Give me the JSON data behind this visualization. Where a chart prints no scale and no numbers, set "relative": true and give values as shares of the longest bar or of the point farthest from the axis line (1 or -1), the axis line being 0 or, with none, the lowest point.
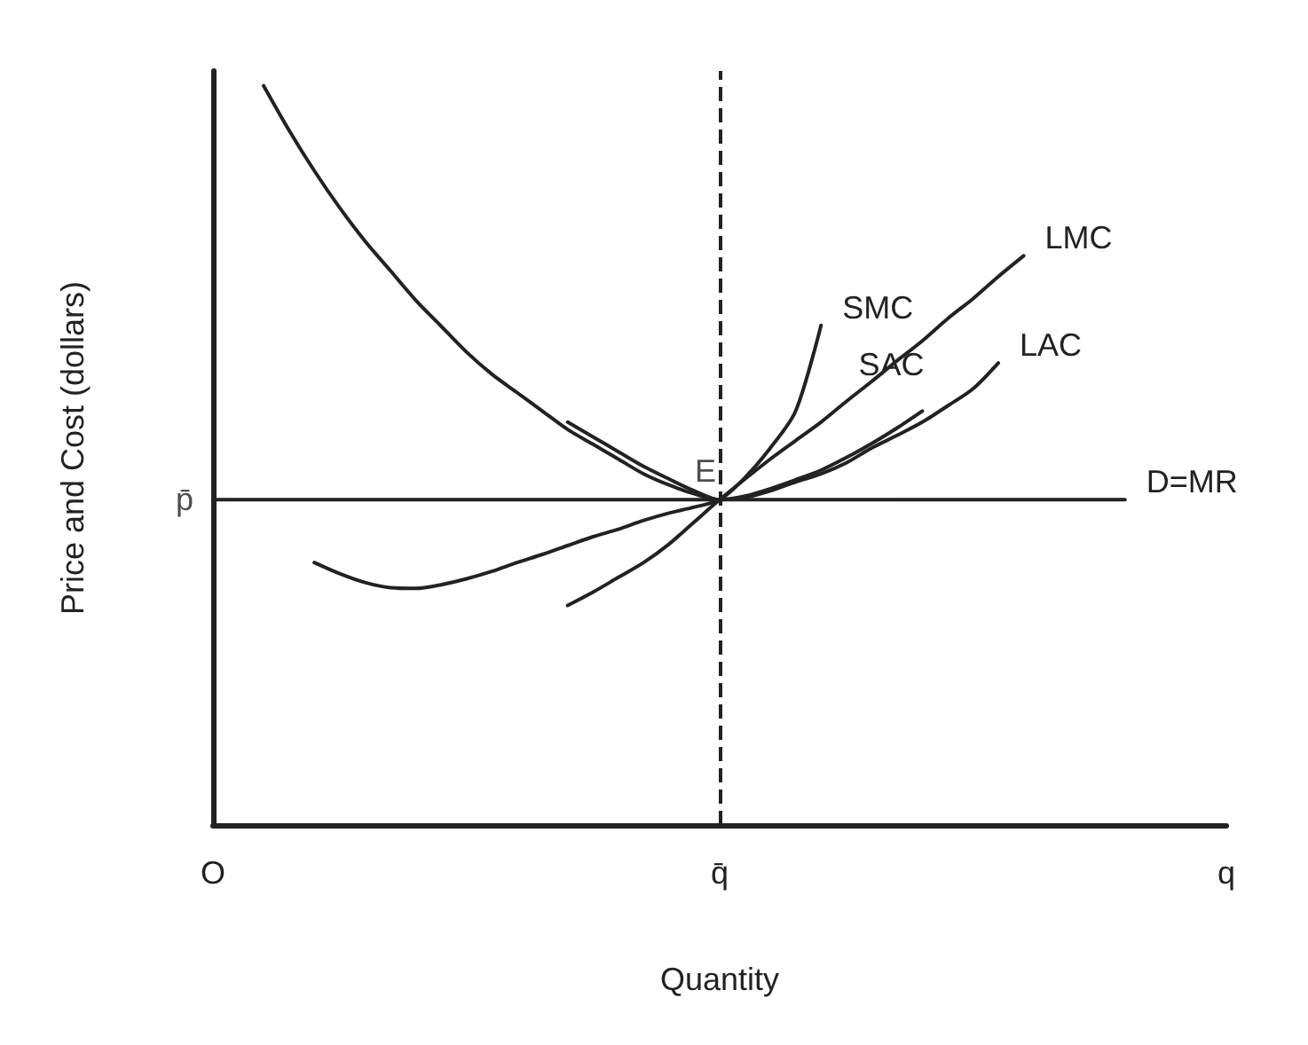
{
  "chart_data": {
    "type": "line",
    "relative": true,
    "xlabel": "Quantity",
    "ylabel": "Price and Cost (dollars)",
    "grid": false,
    "legend": false,
    "marker": "none",
    "line_style": "solid",
    "categories": [
      "O",
      null,
      null,
      null,
      null,
      null,
      null,
      null,
      null,
      null,
      null,
      null,
      null,
      null,
      null,
      null,
      null,
      null,
      null,
      null,
      "q̄",
      null,
      null,
      null,
      null,
      null,
      null,
      null,
      null,
      null,
      null,
      null,
      null,
      null,
      null,
      null,
      null,
      null,
      null,
      null,
      "q"
    ],
    "series": [
      {
        "name": "LAC",
        "color": "#222222",
        "values": [
          null,
          null,
          1.0,
          0.94,
          0.885,
          0.835,
          0.79,
          0.75,
          0.71,
          0.675,
          0.64,
          0.61,
          0.585,
          0.56,
          0.535,
          0.515,
          0.495,
          0.475,
          0.46,
          0.448,
          0.44,
          0.443,
          0.452,
          0.464,
          0.475,
          0.49,
          0.51,
          0.527,
          0.545,
          0.567,
          0.59,
          0.625,
          null,
          null,
          null,
          null,
          null,
          null,
          null,
          null,
          null
        ]
      },
      {
        "name": "SAC",
        "color": "#222222",
        "values": [
          null,
          null,
          null,
          null,
          null,
          null,
          null,
          null,
          null,
          null,
          null,
          null,
          null,
          null,
          0.545,
          0.525,
          0.505,
          0.485,
          0.468,
          0.452,
          0.44,
          0.445,
          0.455,
          0.467,
          0.48,
          0.497,
          0.516,
          0.537,
          0.56,
          null,
          null,
          null,
          null,
          null,
          null,
          null,
          null,
          null,
          null,
          null,
          null
        ]
      },
      {
        "name": "LMC",
        "color": "#222222",
        "values": [
          null,
          null,
          null,
          null,
          null,
          null,
          null,
          null,
          null,
          null,
          null,
          null,
          null,
          null,
          0.297,
          0.315,
          0.335,
          0.355,
          0.38,
          0.41,
          0.44,
          0.468,
          0.495,
          0.52,
          0.545,
          0.573,
          0.6,
          0.628,
          0.655,
          0.685,
          0.712,
          0.742,
          0.77,
          null,
          null,
          null,
          null,
          null,
          null,
          null,
          null
        ]
      },
      {
        "name": "SMC",
        "color": "#222222",
        "values": [
          null,
          null,
          null,
          null,
          0.355,
          0.34,
          0.328,
          0.321,
          0.32,
          0.325,
          0.333,
          0.343,
          0.355,
          0.366,
          0.378,
          0.39,
          0.4,
          0.412,
          0.422,
          0.43,
          0.44,
          0.47,
          0.51,
          0.56,
          0.676,
          null,
          null,
          null,
          null,
          null,
          null,
          null,
          null,
          null,
          null,
          null,
          null,
          null,
          null,
          null,
          null
        ]
      },
      {
        "name": "D=MR",
        "color": "#222222",
        "values": [
          0.44,
          0.44,
          0.44,
          0.44,
          0.44,
          0.44,
          0.44,
          0.44,
          0.44,
          0.44,
          0.44,
          0.44,
          0.44,
          0.44,
          0.44,
          0.44,
          0.44,
          0.44,
          0.44,
          0.44,
          0.44,
          0.44,
          0.44,
          0.44,
          0.44,
          0.44,
          0.44,
          0.44,
          0.44,
          0.44,
          0.44,
          0.44,
          0.44,
          0.44,
          0.44,
          0.44,
          0.44,
          null,
          null,
          null,
          null
        ]
      }
    ],
    "ref_lines": [
      {
        "axis": "x",
        "value": "q̄",
        "line_style": "dashed",
        "color": "#222222"
      }
    ],
    "annotations": [
      {
        "text": "E",
        "x": "q̄",
        "y": 0.44
      },
      {
        "text": "p̄",
        "x": "O",
        "y": 0.44
      }
    ]
  }
}
